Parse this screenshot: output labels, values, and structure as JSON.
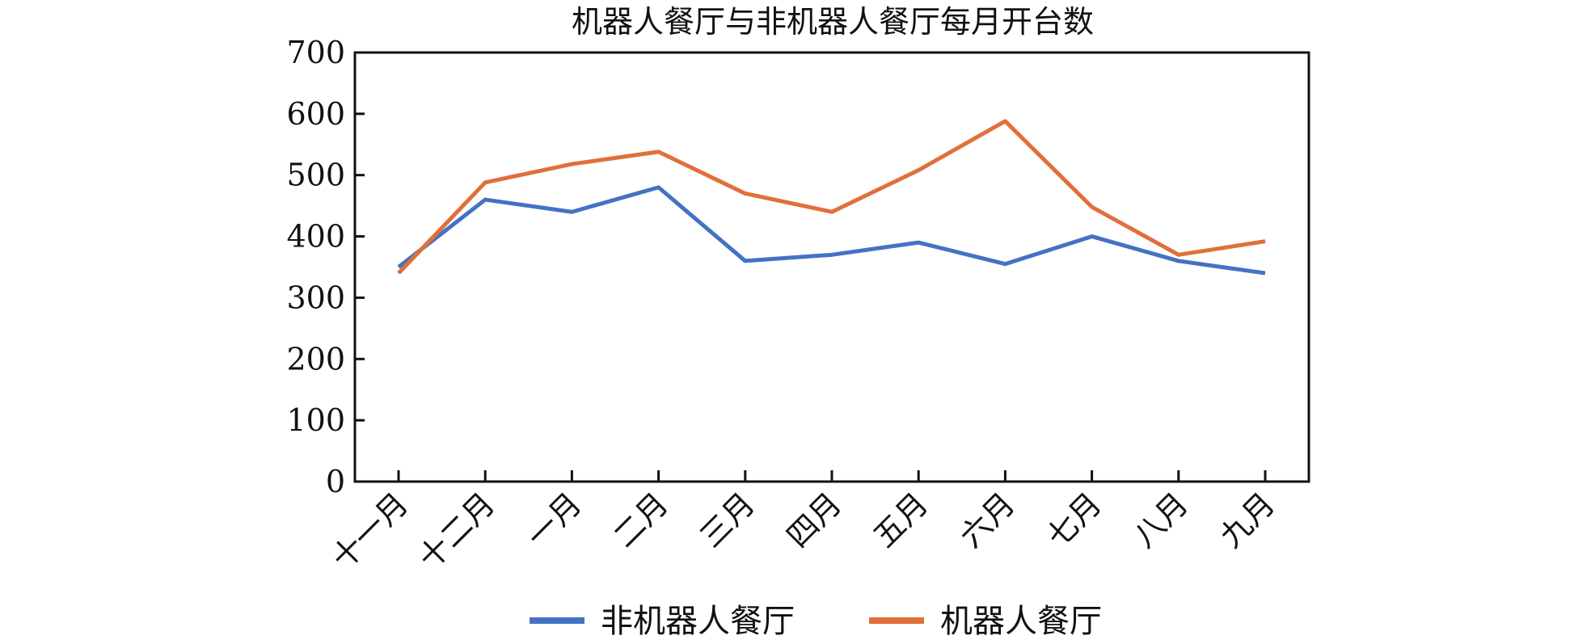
{
  "chart_data": {
    "type": "line",
    "title": "机器人餐厅与非机器人餐厅每月开台数",
    "xlabel": "",
    "ylabel": "",
    "categories": [
      "十一月",
      "十二月",
      "一月",
      "二月",
      "三月",
      "四月",
      "五月",
      "六月",
      "七月",
      "八月",
      "九月"
    ],
    "ylim": [
      0,
      700
    ],
    "yticks": [
      0,
      100,
      200,
      300,
      400,
      500,
      600,
      700
    ],
    "grid": false,
    "legend_position": "bottom",
    "series": [
      {
        "name": "非机器人餐厅",
        "color": "#4472C4",
        "values": [
          350,
          460,
          440,
          480,
          360,
          370,
          390,
          355,
          400,
          360,
          340
        ]
      },
      {
        "name": "机器人餐厅",
        "color": "#E0703A",
        "values": [
          340,
          488,
          518,
          538,
          470,
          440,
          508,
          588,
          448,
          370,
          392
        ]
      }
    ]
  }
}
